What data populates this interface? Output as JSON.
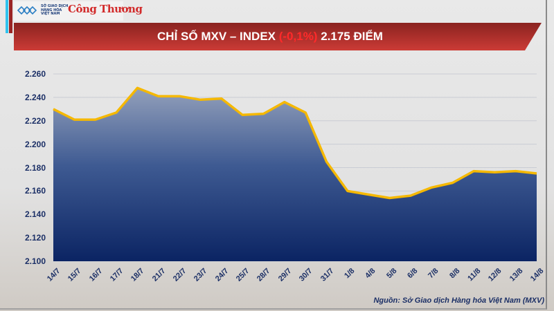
{
  "header": {
    "org_name": "SỞ GIAO DỊCH HÀNG HÓA VIỆT NAM",
    "brand": "Công Thương",
    "title_prefix": "CHỈ SỐ MXV – INDEX ",
    "title_change": "(-0,1%)",
    "title_suffix": " 2.175 ĐIỂM"
  },
  "colors": {
    "banner_red": "#c23a35",
    "banner_dark": "#8a2320",
    "line": "#f5b800",
    "fill_top": "#8e9bb8",
    "fill_bottom": "#0b2463",
    "axis_text": "#1b2f66",
    "negative": "#ff2a2a"
  },
  "source": "Nguồn: Sở Giao dịch Hàng hóa Việt Nam (MXV)",
  "chart_data": {
    "type": "area",
    "title": "CHỈ SỐ MXV – INDEX (-0,1%) 2.175 ĐIỂM",
    "xlabel": "",
    "ylabel": "",
    "ylim": [
      2100,
      2260
    ],
    "yticks": [
      "2.100",
      "2.120",
      "2.140",
      "2.160",
      "2.180",
      "2.200",
      "2.220",
      "2.240",
      "2.260"
    ],
    "grid": true,
    "legend": null,
    "categories": [
      "14/7",
      "15/7",
      "16/7",
      "17/7",
      "18/7",
      "21/7",
      "22/7",
      "23/7",
      "24/7",
      "25/7",
      "28/7",
      "29/7",
      "30/7",
      "31/7",
      "1/8",
      "4/8",
      "5/8",
      "6/8",
      "7/8",
      "8/8",
      "11/8",
      "12/8",
      "13/8",
      "14/8"
    ],
    "series": [
      {
        "name": "MXV-Index",
        "values": [
          2230,
          2221,
          2221,
          2227,
          2248,
          2241,
          2241,
          2238,
          2239,
          2225,
          2226,
          2236,
          2227,
          2185,
          2160,
          2157,
          2154,
          2156,
          2163,
          2167,
          2177,
          2176,
          2177,
          2175
        ]
      }
    ]
  }
}
